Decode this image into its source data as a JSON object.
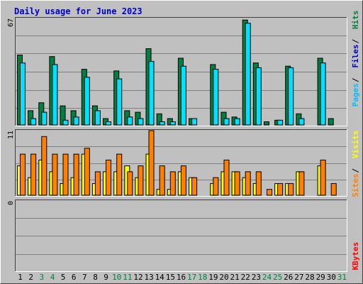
{
  "chart_data": {
    "type": "bar",
    "title": "Daily usage for June 2023",
    "colors": {
      "background": "#c0c0c0",
      "title": "#0000cc",
      "hits": "#008040",
      "files": "#00e0ff",
      "sites": "#ff8000",
      "visits": "#ffff00",
      "kbytes": "#ff0000",
      "gridline": "#808080",
      "weekend_label": "#008040"
    },
    "days": [
      "1",
      "2",
      "3",
      "4",
      "5",
      "6",
      "7",
      "8",
      "9",
      "10",
      "11",
      "12",
      "13",
      "14",
      "15",
      "16",
      "17",
      "18",
      "19",
      "20",
      "21",
      "22",
      "23",
      "24",
      "25",
      "26",
      "27",
      "28",
      "29",
      "30",
      "31"
    ],
    "weekend_days": [
      "3",
      "4",
      "10",
      "11",
      "17",
      "18",
      "24",
      "25",
      "31"
    ],
    "panels": [
      {
        "id": "hits-files",
        "ylim": [
          0,
          67
        ],
        "ymax_label": "67",
        "labels": [
          "Hits",
          "Files",
          "Pages"
        ],
        "series": [
          {
            "name": "Hits",
            "values": [
              44,
              9,
              14,
              43,
              12,
              9,
              35,
              12,
              4,
              34,
              9,
              8,
              48,
              7,
              4,
              42,
              4,
              0,
              38,
              8,
              5,
              66,
              39,
              2,
              3,
              37,
              7,
              0,
              42,
              4,
              0
            ]
          },
          {
            "name": "Files",
            "values": [
              39,
              4,
              8,
              38,
              3,
              5,
              30,
              9,
              2,
              29,
              5,
              4,
              40,
              2,
              2,
              37,
              4,
              0,
              35,
              4,
              4,
              64,
              36,
              0,
              3,
              36,
              4,
              0,
              39,
              0,
              0
            ]
          }
        ]
      },
      {
        "id": "sites-visits",
        "ylim": [
          0,
          11
        ],
        "ymax_label": "11",
        "labels": [
          "Visits",
          "Sites"
        ],
        "series": [
          {
            "name": "Visits",
            "values": [
              5,
              3,
              6,
              4,
              2,
              3,
              7,
              2,
              4,
              4,
              5,
              3,
              7,
              1,
              1,
              4,
              3,
              0,
              2,
              4,
              4,
              3,
              2,
              0,
              2,
              2,
              4,
              0,
              5,
              0,
              0
            ]
          },
          {
            "name": "Sites",
            "values": [
              7,
              7,
              10,
              7,
              7,
              7,
              8,
              4,
              6,
              7,
              4,
              5,
              11,
              5,
              4,
              5,
              3,
              0,
              3,
              6,
              4,
              4,
              4,
              1,
              2,
              2,
              4,
              0,
              6,
              2,
              0
            ]
          }
        ]
      },
      {
        "id": "kbytes",
        "ylim": [
          0,
          1
        ],
        "ymax_label": "0",
        "labels": [
          "KBytes"
        ],
        "series": [
          {
            "name": "KBytes",
            "values": [
              0,
              0,
              0,
              0,
              0,
              0,
              0,
              0,
              0,
              0,
              0,
              0,
              0,
              0,
              0,
              0,
              0,
              0,
              0,
              0,
              0,
              0,
              0,
              0,
              0,
              0,
              0,
              0,
              0,
              0,
              0
            ]
          }
        ]
      }
    ],
    "grid": true
  }
}
